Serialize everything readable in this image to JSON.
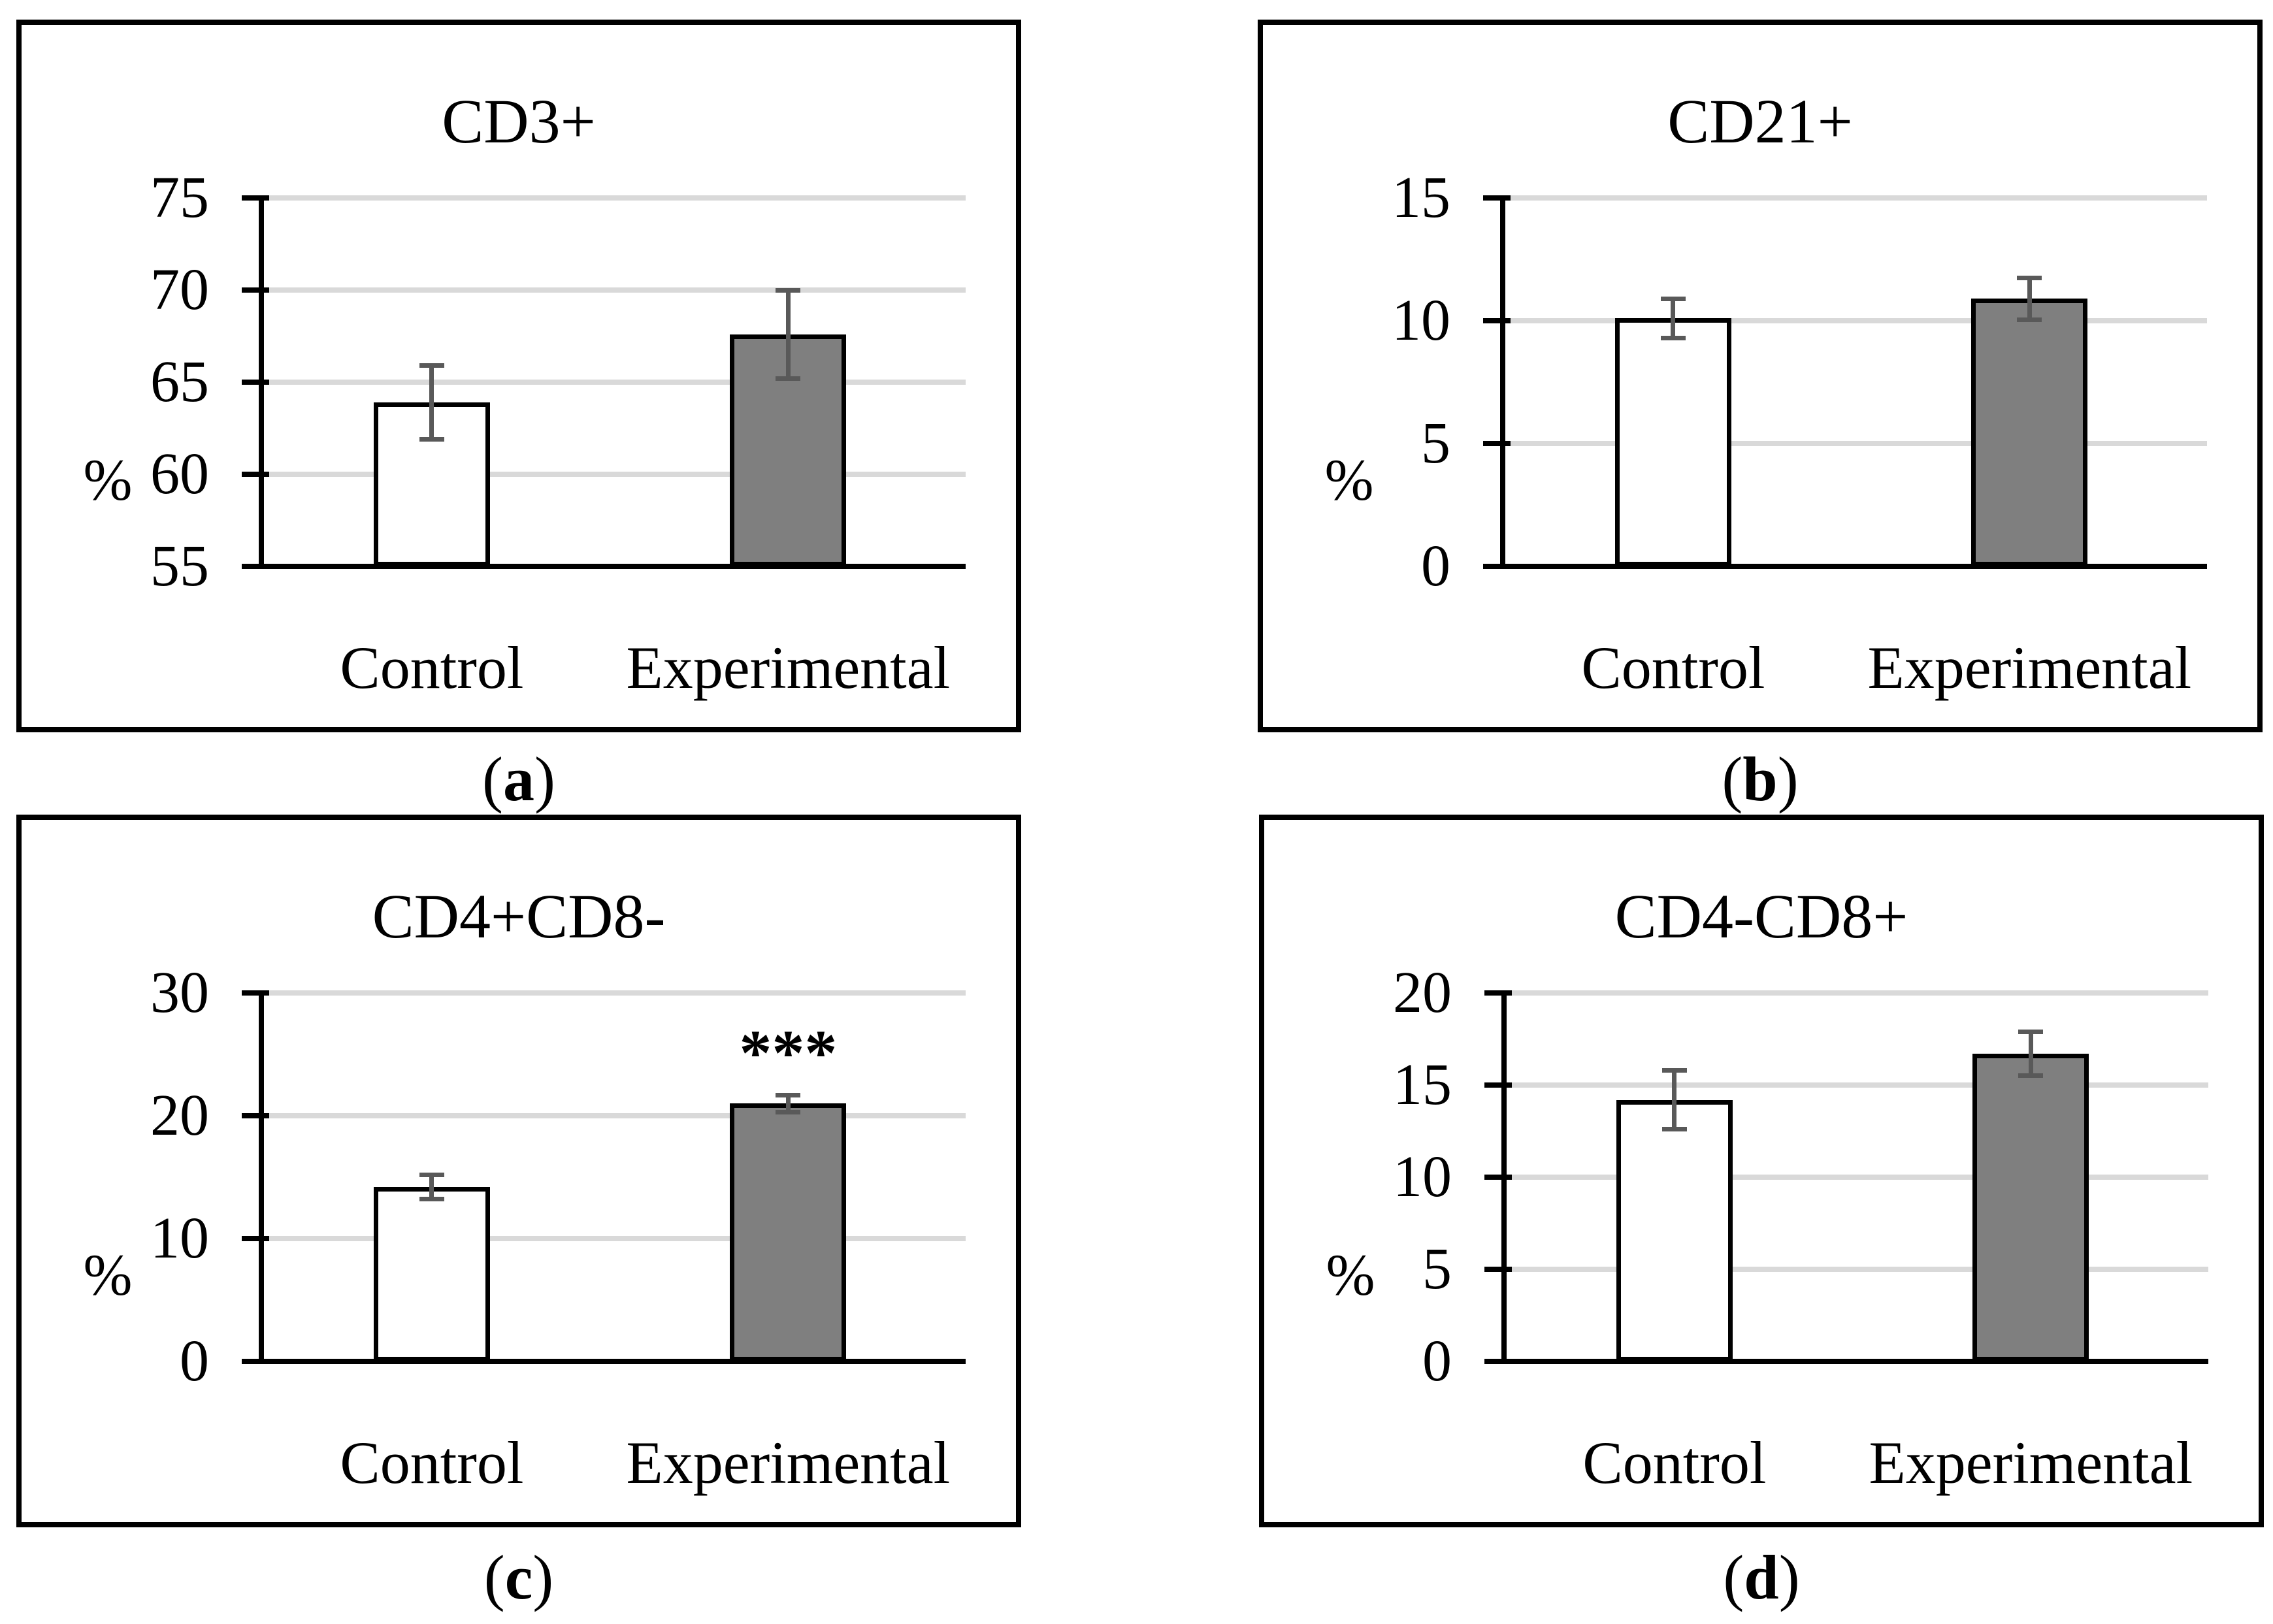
{
  "style": {
    "background": "#ffffff",
    "control_fill": "#ffffff",
    "experimental_fill": "#7f7f7f",
    "bar_border": "#000000",
    "error_color": "#595959",
    "gridline_color": "#d9d9d9",
    "axis_color": "#000000",
    "text_color": "#000000"
  },
  "chart_data": [
    {
      "type": "bar",
      "panel": "a",
      "title": "CD3+",
      "ylabel": "%",
      "xlabel": "",
      "categories": [
        "Control",
        "Experimental"
      ],
      "series": [
        {
          "name": "Control",
          "value": 63.9,
          "error": 2.0,
          "fill": "#ffffff"
        },
        {
          "name": "Experimental",
          "value": 67.6,
          "error": 2.4,
          "fill": "#7f7f7f"
        }
      ],
      "ylim": [
        55,
        75
      ],
      "yticks": [
        55,
        60,
        65,
        70,
        75
      ],
      "grid": true,
      "legend": false,
      "annotation": null,
      "caption": {
        "pre": "(",
        "letter": "a",
        "post": ")"
      }
    },
    {
      "type": "bar",
      "panel": "b",
      "title": "CD21+",
      "ylabel": "%",
      "xlabel": "",
      "categories": [
        "Control",
        "Experimental"
      ],
      "series": [
        {
          "name": "Control",
          "value": 10.1,
          "error": 0.8,
          "fill": "#ffffff"
        },
        {
          "name": "Experimental",
          "value": 10.9,
          "error": 0.85,
          "fill": "#7f7f7f"
        }
      ],
      "ylim": [
        0,
        15
      ],
      "yticks": [
        0,
        5,
        10,
        15
      ],
      "grid": true,
      "legend": false,
      "annotation": null,
      "caption": {
        "pre": "(",
        "letter": "b",
        "post": ")"
      }
    },
    {
      "type": "bar",
      "panel": "c",
      "title": "CD4+CD8-",
      "ylabel": "%",
      "xlabel": "",
      "categories": [
        "Control",
        "Experimental"
      ],
      "series": [
        {
          "name": "Control",
          "value": 14.2,
          "error": 1.0,
          "fill": "#ffffff"
        },
        {
          "name": "Experimental",
          "value": 21.0,
          "error": 0.7,
          "fill": "#7f7f7f"
        }
      ],
      "ylim": [
        0,
        30
      ],
      "yticks": [
        0,
        10,
        20,
        30
      ],
      "grid": true,
      "legend": false,
      "annotation": {
        "text": "***",
        "target": "Experimental",
        "y": 25
      },
      "caption": {
        "pre": "(",
        "letter": "c",
        "post": ")"
      }
    },
    {
      "type": "bar",
      "panel": "d",
      "title": "CD4-CD8+",
      "ylabel": "%",
      "xlabel": "",
      "categories": [
        "Control",
        "Experimental"
      ],
      "series": [
        {
          "name": "Control",
          "value": 14.2,
          "error": 1.6,
          "fill": "#ffffff"
        },
        {
          "name": "Experimental",
          "value": 16.7,
          "error": 1.2,
          "fill": "#7f7f7f"
        }
      ],
      "ylim": [
        0,
        20
      ],
      "yticks": [
        0,
        5,
        10,
        15,
        20
      ],
      "grid": true,
      "legend": false,
      "annotation": null,
      "caption": {
        "pre": "(",
        "letter": "d",
        "post": ")"
      }
    }
  ]
}
